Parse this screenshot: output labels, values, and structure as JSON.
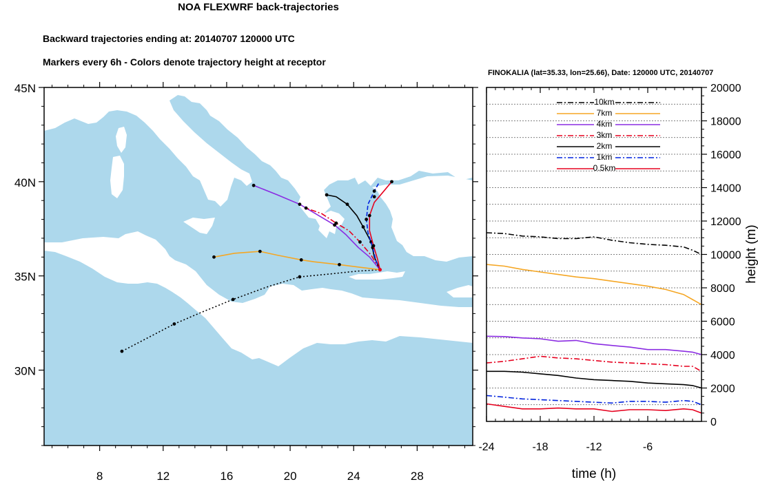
{
  "header": {
    "title": "NOA FLEXWRF back-trajectories",
    "subtitle1": "Backward trajectories ending at: 20140707  120000 UTC",
    "subtitle2": "Markers every 6h - Colors denote trajectory height at receptor",
    "panel_title": "FINOKALIA (lat=35.33,  lon=25.66), Date: 120000 UTC, 20140707"
  },
  "colors": {
    "sea": "#add8ec",
    "land": "#ffffff",
    "c10km": "#000000",
    "c7km": "#f5a623",
    "c4km": "#8a2be2",
    "c3km": "#e6001e",
    "c2km": "#000000",
    "c1km": "#0022dd",
    "c05km": "#e6001e"
  },
  "chart_data": [
    {
      "type": "map",
      "name": "trajectory-map",
      "xlim": [
        4.5,
        31.5
      ],
      "ylim": [
        26,
        45
      ],
      "x_ticks": [
        8,
        12,
        16,
        20,
        24,
        28
      ],
      "y_ticks": [
        30,
        35,
        40,
        45
      ],
      "x_tick_labels": [
        "8",
        "12",
        "16",
        "20",
        "24",
        "28"
      ],
      "y_tick_labels": [
        "30N",
        "35N",
        "40N",
        "45N"
      ],
      "receptor": [
        25.66,
        35.33
      ],
      "trajectories": [
        {
          "name": "10km",
          "color": "#000000",
          "dash": "dotted",
          "points": [
            [
              25.66,
              35.33
            ],
            [
              24.2,
              35.25
            ],
            [
              22.5,
              35.1
            ],
            [
              20.6,
              34.95
            ],
            [
              18.5,
              34.4
            ],
            [
              16.4,
              33.75
            ],
            [
              14.5,
              33.1
            ],
            [
              12.7,
              32.45
            ],
            [
              11,
              31.7
            ],
            [
              9.4,
              31.0
            ]
          ],
          "markers": [
            [
              20.6,
              34.95
            ],
            [
              16.4,
              33.75
            ],
            [
              12.7,
              32.45
            ],
            [
              9.4,
              31.0
            ]
          ]
        },
        {
          "name": "7km",
          "color": "#f5a623",
          "dash": "solid",
          "points": [
            [
              25.66,
              35.33
            ],
            [
              24.5,
              35.45
            ],
            [
              23.1,
              35.6
            ],
            [
              21.5,
              35.75
            ],
            [
              20.7,
              35.85
            ],
            [
              19.2,
              36.1
            ],
            [
              18.1,
              36.3
            ],
            [
              16.5,
              36.2
            ],
            [
              15.2,
              36.0
            ]
          ],
          "markers": [
            [
              23.1,
              35.6
            ],
            [
              20.7,
              35.85
            ],
            [
              18.1,
              36.3
            ],
            [
              15.2,
              36.0
            ]
          ]
        },
        {
          "name": "4km",
          "color": "#8a2be2",
          "dash": "solid",
          "points": [
            [
              25.66,
              35.33
            ],
            [
              25.0,
              36.0
            ],
            [
              24.3,
              36.5
            ],
            [
              23.5,
              37.2
            ],
            [
              22.8,
              37.7
            ],
            [
              21.8,
              38.2
            ],
            [
              20.6,
              38.8
            ],
            [
              19.2,
              39.3
            ],
            [
              17.7,
              39.8
            ]
          ],
          "markers": [
            [
              22.8,
              37.7
            ],
            [
              20.6,
              38.8
            ],
            [
              17.7,
              39.8
            ]
          ]
        },
        {
          "name": "3km",
          "color": "#e6001e",
          "dash": "dashdot",
          "points": [
            [
              25.66,
              35.33
            ],
            [
              25.1,
              36.1
            ],
            [
              24.4,
              36.8
            ],
            [
              23.7,
              37.4
            ],
            [
              22.9,
              37.8
            ],
            [
              22.0,
              38.3
            ],
            [
              21.0,
              38.6
            ]
          ],
          "markers": [
            [
              24.4,
              36.8
            ],
            [
              22.9,
              37.8
            ],
            [
              21.0,
              38.6
            ]
          ]
        },
        {
          "name": "2km",
          "color": "#000000",
          "dash": "solid",
          "points": [
            [
              25.66,
              35.33
            ],
            [
              25.3,
              36.0
            ],
            [
              25.1,
              36.8
            ],
            [
              24.6,
              37.6
            ],
            [
              24.2,
              38.2
            ],
            [
              23.6,
              38.8
            ],
            [
              22.9,
              39.2
            ],
            [
              22.3,
              39.3
            ]
          ],
          "markers": [
            [
              25.1,
              36.8
            ],
            [
              24.6,
              37.6
            ],
            [
              23.6,
              38.8
            ],
            [
              22.3,
              39.3
            ]
          ]
        },
        {
          "name": "1km",
          "color": "#0022dd",
          "dash": "dashed",
          "points": [
            [
              25.66,
              35.33
            ],
            [
              25.4,
              35.8
            ],
            [
              25.2,
              36.5
            ],
            [
              24.9,
              37.3
            ],
            [
              24.8,
              38.0
            ],
            [
              24.9,
              38.8
            ],
            [
              25.3,
              39.5
            ],
            [
              25.6,
              39.95
            ]
          ],
          "markers": [
            [
              25.2,
              36.5
            ],
            [
              24.8,
              38.0
            ],
            [
              25.3,
              39.5
            ]
          ]
        },
        {
          "name": "0.5km",
          "color": "#e6001e",
          "dash": "solid",
          "points": [
            [
              25.66,
              35.33
            ],
            [
              25.5,
              35.9
            ],
            [
              25.25,
              36.6
            ],
            [
              25.0,
              37.4
            ],
            [
              25.0,
              38.2
            ],
            [
              25.3,
              38.9
            ],
            [
              25.8,
              39.4
            ],
            [
              26.4,
              40.0
            ]
          ],
          "markers": [
            [
              25.25,
              36.6
            ],
            [
              25.0,
              38.2
            ],
            [
              25.3,
              39.2
            ],
            [
              26.4,
              40.0
            ]
          ]
        }
      ]
    },
    {
      "type": "line",
      "name": "height-time",
      "xlabel": "time (h)",
      "ylabel": "height (m)",
      "xlim": [
        -24,
        0
      ],
      "ylim": [
        0,
        20000
      ],
      "x_ticks": [
        -24,
        -18,
        -12,
        -6
      ],
      "y_ticks": [
        0,
        2000,
        4000,
        6000,
        8000,
        10000,
        12000,
        14000,
        16000,
        18000,
        20000
      ],
      "x": [
        -24,
        -22,
        -20,
        -18,
        -16,
        -14,
        -12,
        -10,
        -8,
        -6,
        -4,
        -2,
        -1,
        0
      ],
      "series": [
        {
          "name": "10km",
          "color": "#000000",
          "dash": "dashdot",
          "values": [
            11300,
            11250,
            11100,
            11050,
            10950,
            10950,
            11050,
            10850,
            10700,
            10600,
            10550,
            10450,
            10250,
            10000
          ]
        },
        {
          "name": "7km",
          "color": "#f5a623",
          "dash": "solid",
          "values": [
            9400,
            9300,
            9100,
            8950,
            8800,
            8650,
            8550,
            8400,
            8250,
            8100,
            7900,
            7600,
            7300,
            7000
          ]
        },
        {
          "name": "4km",
          "color": "#8a2be2",
          "dash": "solid",
          "values": [
            5100,
            5080,
            5000,
            4950,
            4800,
            4850,
            4650,
            4550,
            4450,
            4300,
            4300,
            4200,
            4150,
            4000
          ]
        },
        {
          "name": "3km",
          "color": "#e6001e",
          "dash": "dashdot",
          "values": [
            3500,
            3600,
            3750,
            3900,
            3800,
            3750,
            3650,
            3550,
            3500,
            3450,
            3400,
            3300,
            3300,
            3000
          ]
        },
        {
          "name": "2km",
          "color": "#000000",
          "dash": "solid",
          "values": [
            3000,
            3000,
            2950,
            2850,
            2750,
            2600,
            2500,
            2450,
            2400,
            2300,
            2250,
            2200,
            2150,
            2000
          ]
        },
        {
          "name": "1km",
          "color": "#0022dd",
          "dash": "dashdot",
          "values": [
            1550,
            1450,
            1350,
            1300,
            1250,
            1200,
            1150,
            1100,
            1200,
            1200,
            1150,
            1250,
            1200,
            1000
          ]
        },
        {
          "name": "0.5km",
          "color": "#e6001e",
          "dash": "solid",
          "values": [
            1050,
            900,
            750,
            750,
            800,
            750,
            750,
            600,
            700,
            700,
            650,
            750,
            700,
            500
          ]
        }
      ],
      "legend": [
        "10km",
        "7km",
        "4km",
        "3km",
        "2km",
        "1km",
        "0.5km"
      ],
      "legend_position": "top",
      "grid": "horizontal dotted"
    }
  ]
}
